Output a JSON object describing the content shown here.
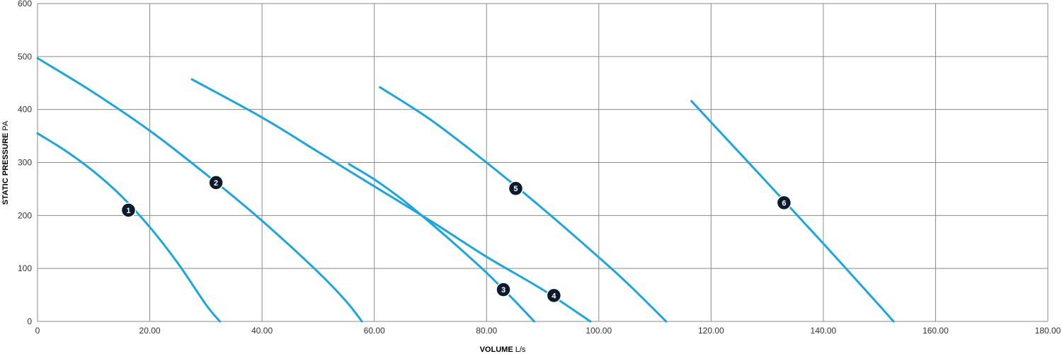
{
  "chart_data": {
    "type": "line",
    "title": "",
    "xlabel_bold": "VOLUME",
    "xlabel_unit": "L/s",
    "ylabel_bold": "STATIC PRESSURE",
    "ylabel_unit": "PA",
    "xlim": [
      0,
      180
    ],
    "ylim": [
      0,
      600
    ],
    "xticks": [
      "0",
      "20.00",
      "40.00",
      "60.00",
      "80.00",
      "100.00",
      "120.00",
      "140.00",
      "160.00",
      "180.00"
    ],
    "yticks": [
      "0",
      "100",
      "200",
      "300",
      "400",
      "500",
      "600"
    ],
    "grid": true,
    "line_color": "#1aa6e0",
    "marker_color": "#0d1b2e",
    "series": [
      {
        "name": "1",
        "label_point": [
          16.2,
          210
        ],
        "x": [
          0,
          5,
          10,
          15,
          20,
          25,
          30,
          32.5
        ],
        "y": [
          355,
          322,
          283,
          236,
          178,
          110,
          32,
          0
        ]
      },
      {
        "name": "2",
        "label_point": [
          31.8,
          262
        ],
        "x": [
          0,
          10,
          20,
          30,
          40,
          50,
          55,
          57.8
        ],
        "y": [
          497,
          432,
          360,
          278,
          190,
          93,
          38,
          0
        ]
      },
      {
        "name": "3",
        "label_point": [
          83,
          60
        ],
        "x": [
          55.5,
          60,
          65,
          70,
          75,
          80,
          85,
          88.5
        ],
        "y": [
          297,
          268,
          230,
          186,
          140,
          92,
          39,
          0
        ]
      },
      {
        "name": "4",
        "label_point": [
          92,
          49
        ],
        "x": [
          27.5,
          40,
          50,
          60,
          70,
          80,
          90,
          98.5
        ],
        "y": [
          457,
          385,
          320,
          255,
          190,
          122,
          60,
          0
        ]
      },
      {
        "name": "5",
        "label_point": [
          85.2,
          251
        ],
        "x": [
          61,
          70,
          80,
          90,
          100,
          105,
          112
        ],
        "y": [
          442,
          381,
          300,
          213,
          121,
          73,
          0
        ]
      },
      {
        "name": "6",
        "label_point": [
          133,
          224
        ],
        "x": [
          116.5,
          120,
          130,
          140,
          150,
          152.5
        ],
        "y": [
          416,
          376,
          262,
          147,
          30,
          0
        ]
      }
    ]
  }
}
